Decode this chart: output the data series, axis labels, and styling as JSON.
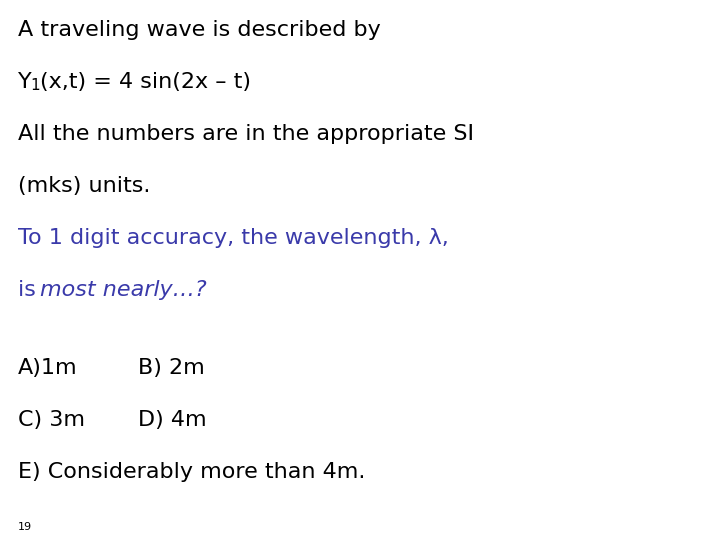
{
  "background_color": "#ffffff",
  "line1": "A traveling wave is described by",
  "line2_main": "(x,t) = 4 sin(2x – t)",
  "line3": "All the numbers are in the appropriate SI",
  "line4": "(mks) units.",
  "line5": "To 1 digit accuracy, the wavelength, λ,",
  "line6_normal": "is ",
  "line6_italic": "most nearly…?",
  "answer_A": "A)1m",
  "answer_B": "B) 2m",
  "answer_C": "C) 3m",
  "answer_D": "D) 4m",
  "answer_E": "E) Considerably more than 4m.",
  "black_color": "#000000",
  "blue_color": "#3a3aaa",
  "page_number": "19",
  "font_size_main": 16,
  "font_size_answers": 16,
  "font_size_sub": 11,
  "font_size_page": 8
}
